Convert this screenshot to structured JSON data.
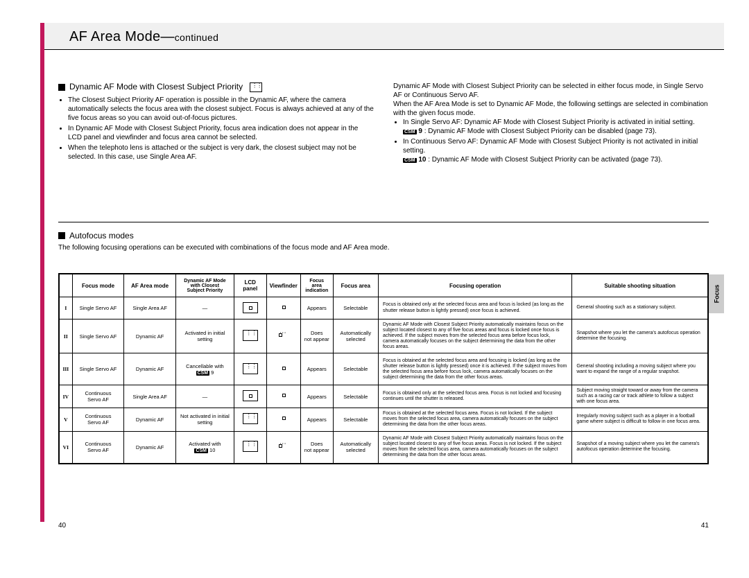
{
  "header": {
    "title": "AF Area Mode—",
    "continued": "continued"
  },
  "sideTab": "Focus",
  "pageLeft": "40",
  "pageRight": "41",
  "left": {
    "heading": "Dynamic AF Mode with Closest Subject Priority",
    "bullets": [
      "The Closest Subject Priority AF operation is possible in the Dynamic AF, where the camera automatically selects the focus area with the closest subject. Focus is always achieved at any of the five focus areas so you can avoid out-of-focus pictures.",
      "In Dynamic AF Mode with Closest Subject Priority, focus area indication does not appear in the LCD panel and viewfinder and focus area cannot be selected.",
      "When the telephoto lens is attached or the subject is very dark, the closest subject may not be selected. In this case, use Single Area AF."
    ]
  },
  "right": {
    "intro1": "Dynamic AF Mode with Closest Subject Priority can be selected in either focus mode, in Single Servo AF or Continuous Servo AF.",
    "intro2": "When the AF Area Mode is set to Dynamic AF Mode, the following settings are selected in combination with the given focus mode.",
    "bullets": [
      "In Single Servo AF: Dynamic AF Mode with Closest Subject Priority is activated in initial setting.",
      "In Continuous Servo AF: Dynamic AF Mode with Closest Subject Priority is not activated in initial setting."
    ],
    "csm9a": "9",
    "csm9txt": ": Dynamic AF Mode with Closest Subject Priority can be disabled (page 73).",
    "csm10a": "10",
    "csm10txt": ": Dynamic AF Mode with Closest Subject Priority can be activated (page 73)."
  },
  "autofocus": {
    "heading": "Autofocus modes",
    "sub": "The following focusing operations can be executed with combinations of the focus mode and AF Area mode."
  },
  "table": {
    "headers": [
      "",
      "Focus mode",
      "AF Area mode",
      "Dynamic AF Mode with Closest Subject Priority",
      "LCD panel",
      "Viewfinder",
      "Focus area indication",
      "Focus area",
      "Focusing operation",
      "Suitable shooting situation"
    ],
    "rows": [
      {
        "n": "I",
        "focus": "Single Servo AF",
        "area": "Single Area AF",
        "dyn": "—",
        "ind": "Appears",
        "fa": "Selectable",
        "op": "Focus is obtained only at the selected focus area and focus is locked (as long as the shutter release button is lightly pressed) once focus is achieved.",
        "sit": "General shooting such as a stationary subject."
      },
      {
        "n": "II",
        "focus": "Single Servo AF",
        "area": "Dynamic AF",
        "dyn": "Activated in initial setting",
        "ind": "Does not appear",
        "fa": "Automatically selected",
        "op": "Dynamic AF Mode with Closest Subject Priority automatically maintains focus on the subject located closest to any of five focus areas and focus is locked once focus is achieved. If the subject moves from the selected focus area before focus lock, camera automatically focuses on the subject determining the data from the other focus areas.",
        "sit": "Snapshot where you let the camera's autofocus operation determine the focusing."
      },
      {
        "n": "III",
        "focus": "Single Servo AF",
        "area": "Dynamic AF",
        "dyn": "Cancellable with CSM 9",
        "ind": "Appears",
        "fa": "Selectable",
        "op": "Focus is obtained at the selected focus area and focusing is locked (as long as the shutter release button is lightly pressed) once it is achieved. If the subject moves from the selected focus area before focus lock, camera automatically focuses on the subject determining the data from the other focus areas.",
        "sit": "General shooting including a moving subject where you want to expand the range of a regular snapshot."
      },
      {
        "n": "IV",
        "focus": "Continuous Servo AF",
        "area": "Single Area AF",
        "dyn": "—",
        "ind": "Appears",
        "fa": "Selectable",
        "op": "Focus is obtained only at the selected focus area. Focus is not locked and focusing continues until the shutter is released.",
        "sit": "Subject moving straight toward or away from the camera such as a racing car or track athlete to follow a subject with one focus area."
      },
      {
        "n": "V",
        "focus": "Continuous Servo AF",
        "area": "Dynamic AF",
        "dyn": "Not activated in initial setting",
        "ind": "Appears",
        "fa": "Selectable",
        "op": "Focus is obtained at the selected focus area. Focus is not locked. If the subject moves from the selected focus area, camera automatically focuses on the subject determining the data from the other focus areas.",
        "sit": "Irregularly moving subject such as a player in a football game where subject is difficult to follow in one focus area."
      },
      {
        "n": "VI",
        "focus": "Continuous Servo AF",
        "area": "Dynamic AF",
        "dyn": "Activated with CSM 10",
        "ind": "Does not appear",
        "fa": "Automatically selected",
        "op": "Dynamic AF Mode with Closest Subject Priority automatically maintains focus on the subject located closest to any of five focus areas. Focus is not locked. If the subject moves from the selected focus area, camera automatically focuses on the subject determining the data from the other focus areas.",
        "sit": "Snapshot of a moving subject where you let the camera's autofocus operation determine the focusing."
      }
    ]
  },
  "style": {
    "accent": "#c2185b",
    "headerBg": "#f0f0f0",
    "tabBg": "#cccccc",
    "pageW": 1080,
    "pageH": 834
  }
}
